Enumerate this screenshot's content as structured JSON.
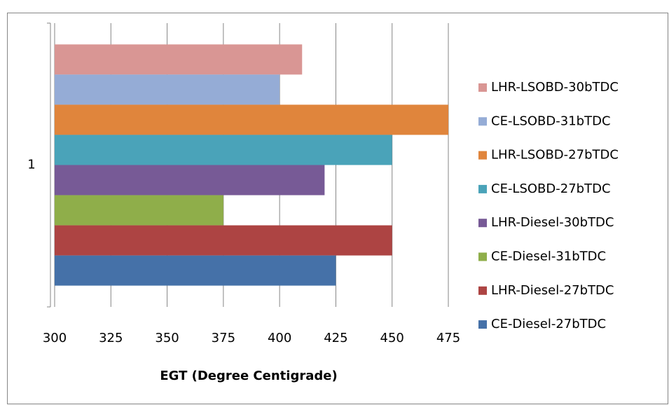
{
  "chart_data": {
    "type": "bar",
    "orientation": "horizontal",
    "x_label": "EGT (Degree Centigrade)",
    "categories": [
      "1"
    ],
    "xlim": [
      300,
      475
    ],
    "xticks": [
      300,
      325,
      350,
      375,
      400,
      425,
      450,
      475
    ],
    "grid": true,
    "legend": "right",
    "series": [
      {
        "name": "LHR-LSOBD-30bTDC",
        "color": "#d99694",
        "values": [
          410
        ]
      },
      {
        "name": "CE-LSOBD-31bTDC",
        "color": "#95acd6",
        "values": [
          400
        ]
      },
      {
        "name": "LHR-LSOBD-27bTDC",
        "color": "#e0853c",
        "values": [
          475
        ]
      },
      {
        "name": "CE-LSOBD-27bTDC",
        "color": "#4aa3b9",
        "values": [
          450
        ]
      },
      {
        "name": "LHR-Diesel-30bTDC",
        "color": "#775a96",
        "values": [
          420
        ]
      },
      {
        "name": "CE-Diesel-31bTDC",
        "color": "#8fae4a",
        "values": [
          375
        ]
      },
      {
        "name": "LHR-Diesel-27bTDC",
        "color": "#ad4443",
        "values": [
          450
        ]
      },
      {
        "name": "CE-Diesel-27bTDC",
        "color": "#4571a8",
        "values": [
          425
        ]
      }
    ]
  }
}
